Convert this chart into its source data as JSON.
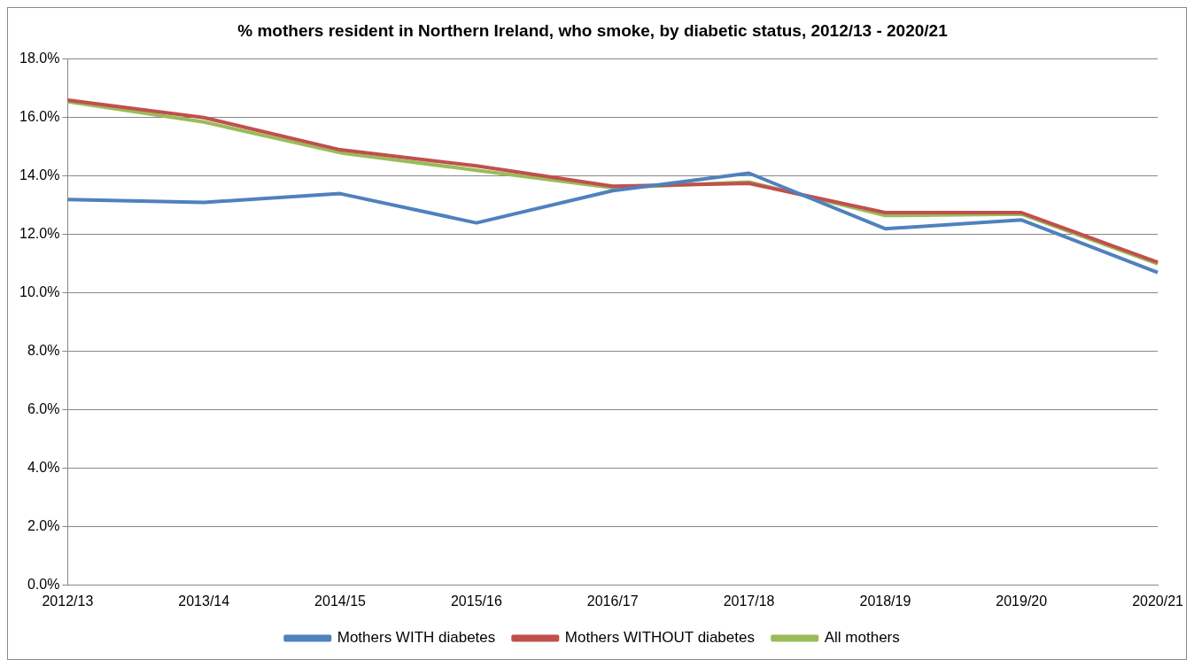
{
  "chart_data": {
    "type": "line",
    "title": "% mothers resident in Northern Ireland, who smoke, by diabetic status, 2012/13 - 2020/21",
    "categories": [
      "2012/13",
      "2013/14",
      "2014/15",
      "2015/16",
      "2016/17",
      "2017/18",
      "2018/19",
      "2019/20",
      "2020/21"
    ],
    "series": [
      {
        "name": "Mothers WITH diabetes",
        "color": "#4f81bd",
        "values": [
          13.2,
          13.1,
          13.4,
          12.4,
          13.5,
          14.1,
          12.2,
          12.5,
          10.7
        ]
      },
      {
        "name": "Mothers WITHOUT diabetes",
        "color": "#c0504d",
        "values": [
          16.6,
          16.0,
          14.9,
          14.35,
          13.65,
          13.75,
          12.75,
          12.75,
          11.05
        ]
      },
      {
        "name": "All mothers",
        "color": "#9bbb59",
        "values": [
          16.55,
          15.85,
          14.8,
          14.2,
          13.6,
          13.8,
          12.65,
          12.7,
          11.0
        ]
      }
    ],
    "ylim": [
      0,
      18
    ],
    "yticks": [
      {
        "value": 0,
        "label": "0.0%"
      },
      {
        "value": 2,
        "label": "2.0%"
      },
      {
        "value": 4,
        "label": "4.0%"
      },
      {
        "value": 6,
        "label": "6.0%"
      },
      {
        "value": 8,
        "label": "8.0%"
      },
      {
        "value": 10,
        "label": "10.0%"
      },
      {
        "value": 12,
        "label": "12.0%"
      },
      {
        "value": 14,
        "label": "14.0%"
      },
      {
        "value": 16,
        "label": "16.0%"
      },
      {
        "value": 18,
        "label": "18.0%"
      }
    ],
    "grid": "y",
    "legend": "bottom",
    "marker": "none",
    "line_style": "solid"
  }
}
